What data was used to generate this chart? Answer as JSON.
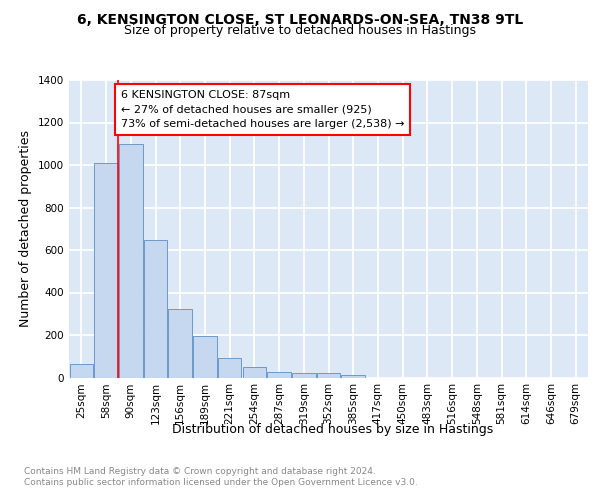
{
  "title_line1": "6, KENSINGTON CLOSE, ST LEONARDS-ON-SEA, TN38 9TL",
  "title_line2": "Size of property relative to detached houses in Hastings",
  "xlabel": "Distribution of detached houses by size in Hastings",
  "ylabel": "Number of detached properties",
  "bar_color": "#c5d8f0",
  "bar_edge_color": "#5b8ec4",
  "categories": [
    "25sqm",
    "58sqm",
    "90sqm",
    "123sqm",
    "156sqm",
    "189sqm",
    "221sqm",
    "254sqm",
    "287sqm",
    "319sqm",
    "352sqm",
    "385sqm",
    "417sqm",
    "450sqm",
    "483sqm",
    "516sqm",
    "548sqm",
    "581sqm",
    "614sqm",
    "646sqm",
    "679sqm"
  ],
  "values": [
    65,
    1010,
    1100,
    648,
    323,
    193,
    90,
    50,
    25,
    22,
    20,
    13,
    0,
    0,
    0,
    0,
    0,
    0,
    0,
    0,
    0
  ],
  "red_line_x": 1.5,
  "ylim": [
    0,
    1400
  ],
  "yticks": [
    0,
    200,
    400,
    600,
    800,
    1000,
    1200,
    1400
  ],
  "annotation_text": "6 KENSINGTON CLOSE: 87sqm\n← 27% of detached houses are smaller (925)\n73% of semi-detached houses are larger (2,538) →",
  "footnote": "Contains HM Land Registry data © Crown copyright and database right 2024.\nContains public sector information licensed under the Open Government Licence v3.0.",
  "background_color": "#dce8f5",
  "grid_color": "#ffffff",
  "title_fontsize": 10,
  "subtitle_fontsize": 9,
  "label_fontsize": 9,
  "tick_fontsize": 7.5,
  "annot_fontsize": 8,
  "footnote_fontsize": 6.5
}
